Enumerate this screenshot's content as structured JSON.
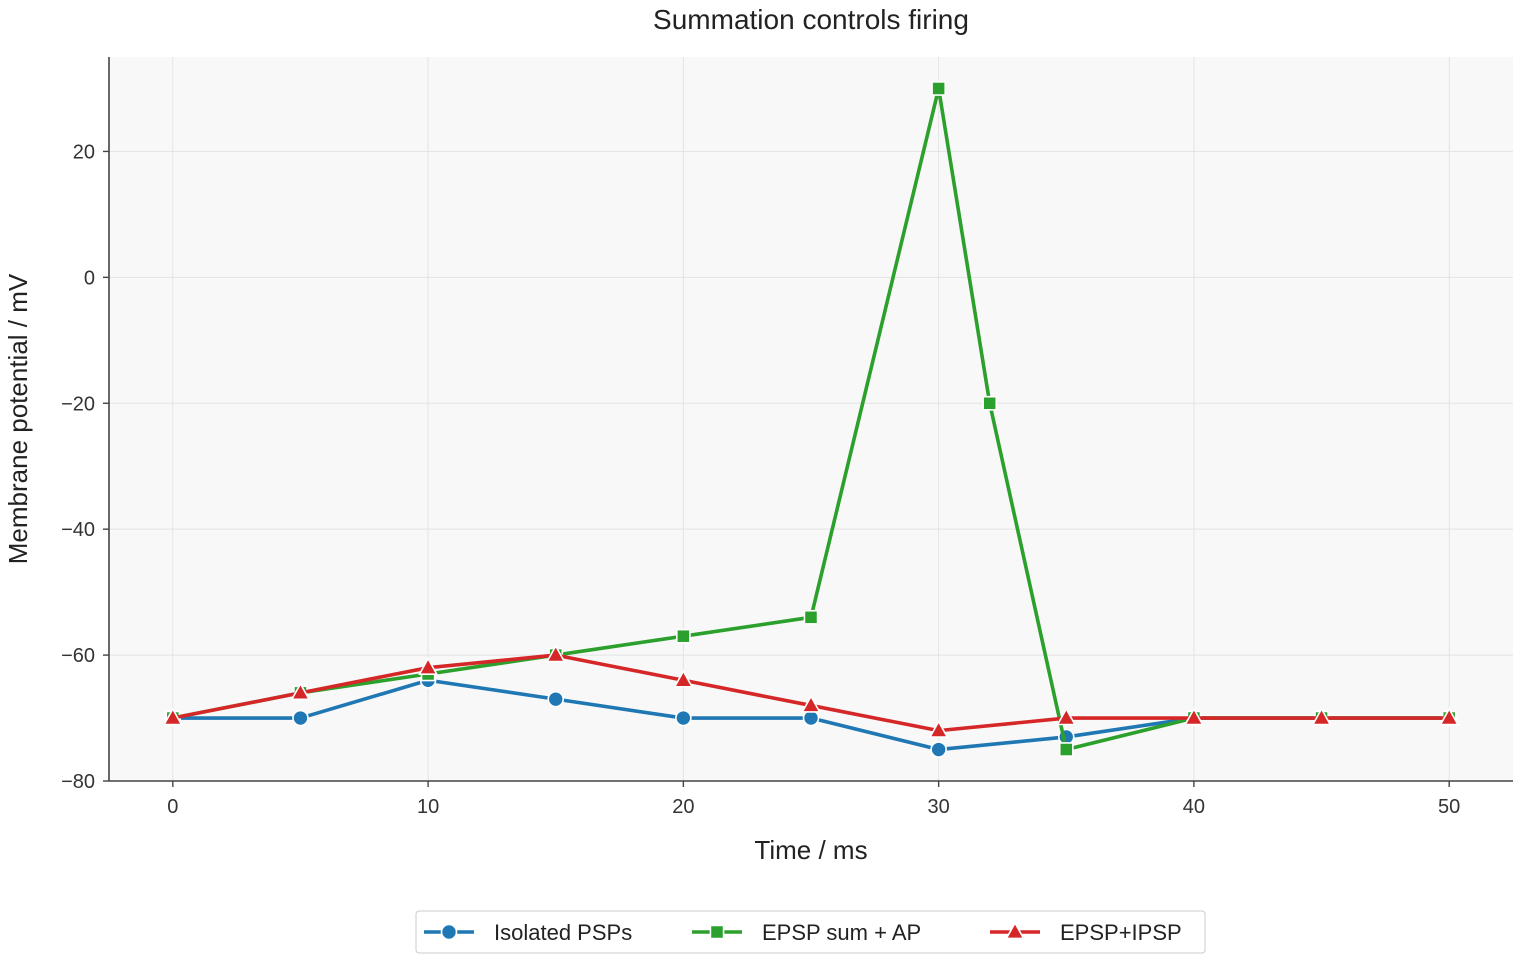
{
  "chart_data": {
    "type": "line",
    "title": "Summation controls firing",
    "xlabel": "Time / ms",
    "ylabel": "Membrane potential / mV",
    "xlim": [
      -2.5,
      52.5
    ],
    "ylim": [
      -80,
      35
    ],
    "x_ticks": [
      0,
      10,
      20,
      30,
      40,
      50
    ],
    "y_ticks": [
      -80,
      -60,
      -40,
      -20,
      0,
      20
    ],
    "grid": true,
    "legend_position": "bottom-center",
    "series": [
      {
        "name": "Isolated PSPs",
        "color": "#1f77b4",
        "marker": "circle",
        "x": [
          0,
          5,
          10,
          15,
          20,
          25,
          30,
          35,
          40,
          45,
          50
        ],
        "y": [
          -70,
          -70,
          -64,
          -67,
          -70,
          -70,
          -75,
          -73,
          -70,
          -70,
          -70
        ]
      },
      {
        "name": "EPSP sum + AP",
        "color": "#2ca02c",
        "marker": "square",
        "x": [
          0,
          5,
          10,
          15,
          20,
          25,
          30,
          32,
          35,
          40,
          45,
          50
        ],
        "y": [
          -70,
          -66,
          -63,
          -60,
          -57,
          -54,
          30,
          -20,
          -75,
          -70,
          -70,
          -70
        ]
      },
      {
        "name": "EPSP+IPSP",
        "color": "#d62728",
        "marker": "triangle",
        "x": [
          0,
          5,
          10,
          15,
          20,
          25,
          30,
          35,
          40,
          45,
          50
        ],
        "y": [
          -70,
          -66,
          -62,
          -60,
          -64,
          -68,
          -72,
          -70,
          -70,
          -70,
          -70
        ]
      }
    ]
  }
}
